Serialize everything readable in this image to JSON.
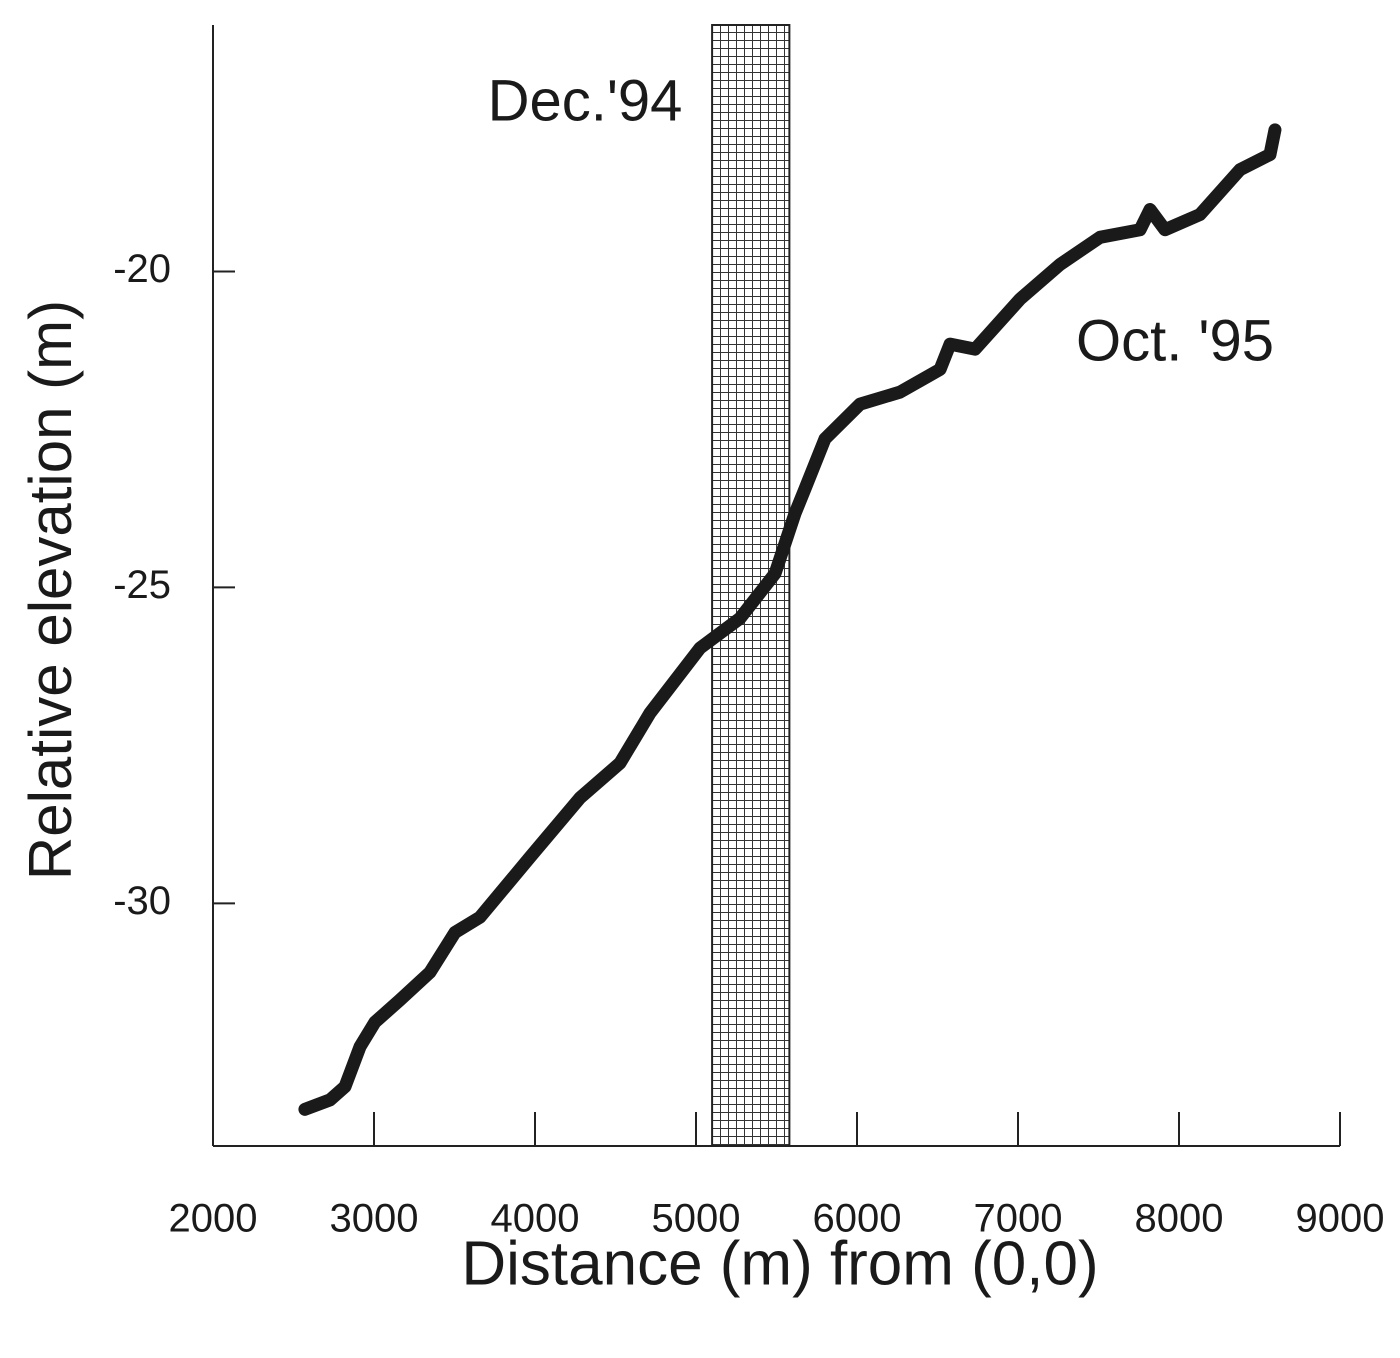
{
  "chart_data": {
    "type": "line",
    "x_label": "Distance (m) from (0,0)",
    "y_label": "Relative elevation (m)",
    "annotations": [
      "Dec.'94",
      "Oct. '95"
    ],
    "shaded_region": {
      "xmin": 5100,
      "xmax": 5580
    },
    "x": [
      2571,
      2727,
      2820,
      2913,
      3006,
      3161,
      3348,
      3503,
      3658,
      3969,
      4280,
      4528,
      4714,
      5025,
      5273,
      5491,
      5615,
      5677,
      5801,
      6019,
      6267,
      6516,
      6578,
      6733,
      7012,
      7261,
      7509,
      7758,
      7820,
      7913,
      8130,
      8379,
      8565,
      8596
    ],
    "series": [
      {
        "color": "#1a1a1a",
        "values": [
          -33.26,
          -33.11,
          -32.9,
          -32.27,
          -31.88,
          -31.53,
          -31.09,
          -30.46,
          -30.22,
          -29.27,
          -28.33,
          -27.78,
          -26.99,
          -25.96,
          -25.49,
          -24.78,
          -23.83,
          -23.44,
          -22.65,
          -22.1,
          -21.91,
          -21.55,
          -21.15,
          -21.23,
          -20.44,
          -19.89,
          -19.46,
          -19.34,
          -19.02,
          -19.34,
          -19.1,
          -18.39,
          -18.15,
          -17.76
        ]
      }
    ],
    "xlim": [
      2000,
      9000
    ],
    "ylim": [
      -33.84,
      -16.1
    ],
    "xticks": [
      2000,
      3000,
      4000,
      5000,
      6000,
      7000,
      8000,
      9000
    ],
    "yticks": [
      -30,
      -25,
      -20
    ],
    "grid": false
  }
}
